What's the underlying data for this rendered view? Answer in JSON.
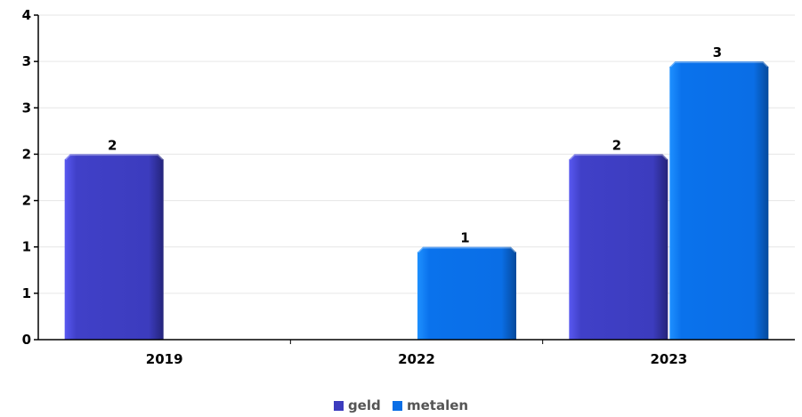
{
  "chart_data": {
    "type": "bar",
    "categories": [
      "2019",
      "2022",
      "2023"
    ],
    "series": [
      {
        "name": "geld",
        "color": "#3c3cbe",
        "values": [
          2,
          null,
          2
        ]
      },
      {
        "name": "metalen",
        "color": "#0a6ee6",
        "values": [
          null,
          1,
          3
        ]
      }
    ],
    "ylim": [
      0,
      3.5
    ],
    "yticks": [
      0,
      0.5,
      1,
      1.5,
      2,
      2.5,
      3,
      3.5
    ],
    "ytick_labels": [
      "0",
      "1",
      "1",
      "2",
      "2",
      "3",
      "3",
      "4"
    ],
    "data_labels": [
      [
        "2",
        null,
        "2"
      ],
      [
        null,
        "1",
        "3"
      ]
    ],
    "grid": true,
    "legend_position": "bottom-center",
    "title": "",
    "xlabel": "",
    "ylabel": ""
  }
}
